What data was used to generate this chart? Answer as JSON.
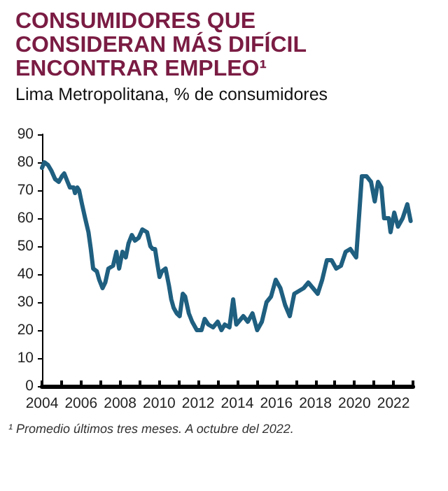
{
  "chart_data": {
    "type": "line",
    "title": "CONSUMIDORES QUE CONSIDERAN MÁS DIFÍCIL ENCONTRAR EMPLEO¹",
    "subtitle": "Lima Metropolitana, % de consumidores",
    "annotations": [
      "¹ Promedio últimos tres meses. A octubre del 2022."
    ],
    "x": [
      2004.0,
      2004.12,
      2004.31,
      2004.48,
      2004.67,
      2004.86,
      2005.02,
      2005.14,
      2005.31,
      2005.43,
      2005.62,
      2005.69,
      2005.81,
      2005.9,
      2006.05,
      2006.21,
      2006.38,
      2006.5,
      2006.62,
      2006.81,
      2006.93,
      2007.1,
      2007.24,
      2007.4,
      2007.64,
      2007.81,
      2007.95,
      2008.12,
      2008.29,
      2008.43,
      2008.6,
      2008.76,
      2008.95,
      2009.14,
      2009.38,
      2009.55,
      2009.67,
      2009.79,
      2009.9,
      2010.02,
      2010.14,
      2010.33,
      2010.5,
      2010.62,
      2010.74,
      2010.9,
      2011.05,
      2011.21,
      2011.33,
      2011.52,
      2011.69,
      2011.93,
      2012.17,
      2012.33,
      2012.52,
      2012.76,
      2013.0,
      2013.19,
      2013.36,
      2013.6,
      2013.79,
      2013.95,
      2014.31,
      2014.54,
      2014.78,
      2015.02,
      2015.26,
      2015.5,
      2015.73,
      2015.97,
      2016.21,
      2016.45,
      2016.69,
      2016.92,
      2017.16,
      2017.4,
      2017.64,
      2017.88,
      2018.12,
      2018.35,
      2018.59,
      2018.83,
      2019.07,
      2019.31,
      2019.55,
      2019.79,
      2020.09,
      2020.38,
      2020.62,
      2020.85,
      2021.04,
      2021.21,
      2021.38,
      2021.52,
      2021.76,
      2021.85,
      2022.04,
      2022.23,
      2022.47,
      2022.71,
      2022.88
    ],
    "series": [
      {
        "color": "#1f5f80",
        "values": [
          78,
          80,
          79,
          77,
          74,
          73,
          75,
          76,
          73,
          71,
          71,
          69,
          71,
          70,
          65,
          60,
          55,
          49,
          42,
          41,
          38,
          35,
          37,
          42,
          43,
          48,
          42,
          48,
          46,
          51,
          54,
          52,
          53,
          56,
          55,
          50,
          49,
          49,
          44,
          39,
          41,
          42,
          36,
          31,
          28,
          26,
          25,
          33,
          32,
          26,
          23,
          20,
          20,
          24,
          22,
          21,
          23,
          20,
          22,
          21,
          31,
          22,
          25,
          23,
          26,
          20,
          23,
          30,
          32,
          38,
          35,
          29,
          25,
          33,
          34,
          35,
          37,
          35,
          33,
          38,
          45,
          45,
          42,
          43,
          48,
          49,
          46,
          75,
          75,
          73,
          66,
          73,
          71,
          60,
          60,
          55,
          62,
          57,
          60,
          65,
          59
        ]
      }
    ],
    "xlim": [
      2004,
      2023
    ],
    "xticks": [
      2004,
      {
        "value": 2005,
        "label": null
      },
      2006,
      {
        "value": 2007,
        "label": null
      },
      2008,
      {
        "value": 2009,
        "label": null
      },
      2010,
      {
        "value": 2011,
        "label": null
      },
      2012,
      {
        "value": 2013,
        "label": null
      },
      2014,
      {
        "value": 2015,
        "label": null
      },
      2016,
      {
        "value": 2017,
        "label": null
      },
      2018,
      {
        "value": 2019,
        "label": null
      },
      2020,
      {
        "value": 2021,
        "label": null
      },
      2022,
      {
        "value": 2023,
        "label": null
      }
    ],
    "ylim": [
      0,
      90
    ],
    "yticks": [
      0,
      10,
      20,
      30,
      40,
      50,
      60,
      70,
      80,
      90
    ],
    "grid": false,
    "marker": "none",
    "line_style": "solid"
  }
}
